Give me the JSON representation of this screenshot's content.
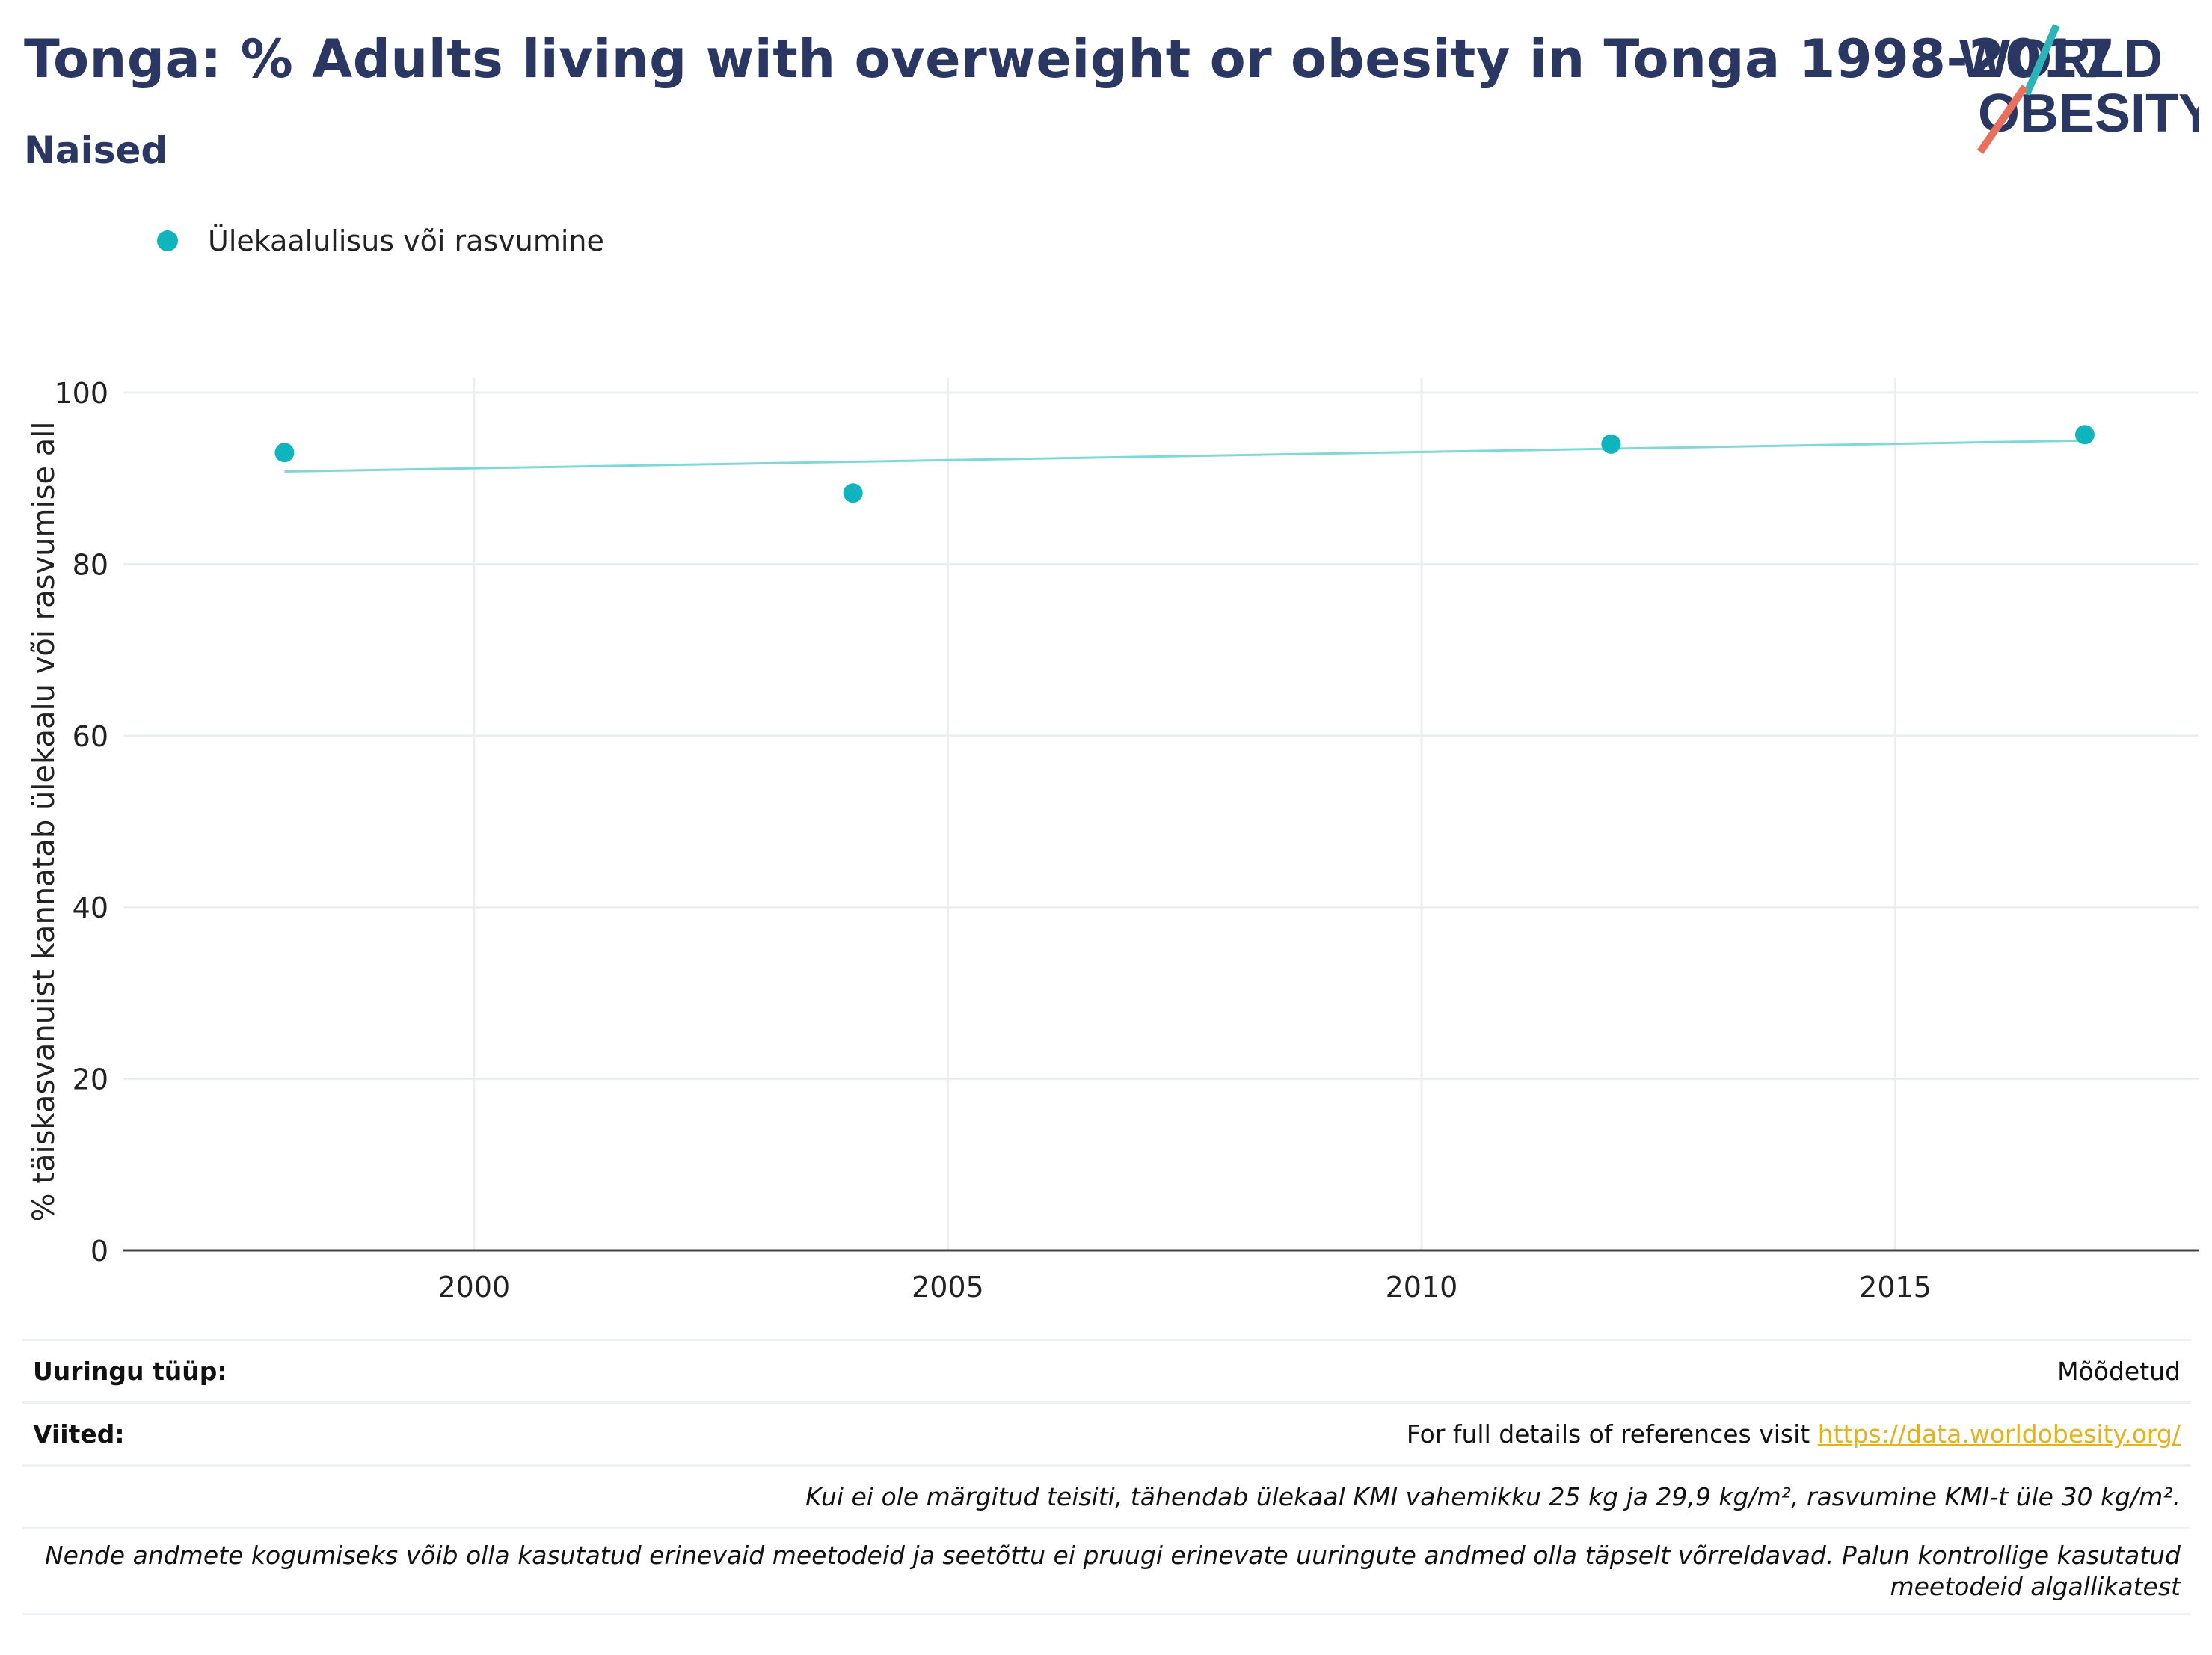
{
  "title": "Tonga: % Adults living with overweight or obesity in Tonga 1998-2017",
  "subtitle": "Naised",
  "logo": {
    "line1": "WORLD",
    "line2": "OBESITY",
    "accent_teal": "#2bb5b8",
    "accent_red": "#e8705c"
  },
  "legend": {
    "label": "Ülekaalulisus või rasvumine",
    "color": "#10b4bf"
  },
  "chart_data": {
    "type": "scatter",
    "ylabel": "% täiskasvanuist kannatab ülekaalu või rasvumise all",
    "xlabel": "",
    "xlim": [
      1996.3,
      2018.2
    ],
    "ylim": [
      0,
      100
    ],
    "x_ticks": [
      2000,
      2005,
      2010,
      2015
    ],
    "y_ticks": [
      0,
      20,
      40,
      60,
      80,
      100
    ],
    "grid": true,
    "series": [
      {
        "name": "Ülekaalulisus või rasvumine",
        "color": "#10b4bf",
        "x": [
          1998,
          2004,
          2012,
          2017
        ],
        "y": [
          93.0,
          88.3,
          94.0,
          95.1
        ]
      }
    ],
    "trendline": {
      "color": "#7fd8d8",
      "x": [
        1998,
        2017
      ],
      "y": [
        90.8,
        94.4
      ]
    }
  },
  "footer": {
    "survey_type_label": "Uuringu tüüp:",
    "survey_type_value": "Mõõdetud",
    "references_label": "Viited:",
    "references_text": "For full details of references visit ",
    "references_link": "https://data.worldobesity.org/",
    "bmi_note": "Kui ei ole märgitud teisiti, tähendab ülekaal KMI vahemikku 25 kg ja 29,9 kg/m², rasvumine KMI-t üle 30 kg/m².",
    "methods_note": "Nende andmete kogumiseks võib olla kasutatud erinevaid meetodeid ja seetõttu ei pruugi erinevate uuringute andmed olla täpselt võrreldavad. Palun kontrollige kasutatud meetodeid algallikatest"
  }
}
